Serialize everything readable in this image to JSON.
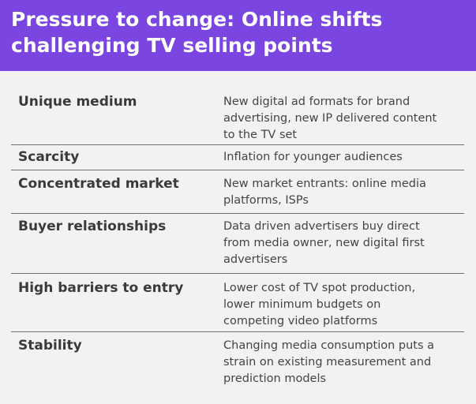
{
  "header": {
    "title_lines": [
      "Pressure to change: Online shifts",
      "challenging TV selling points"
    ]
  },
  "rows": [
    {
      "factor": "Unique medium",
      "shift_lines": [
        "New digital ad formats for brand",
        "advertising, new IP delivered content",
        "to the TV set"
      ]
    },
    {
      "factor": "Scarcity",
      "shift_lines": [
        "Inflation for younger audiences"
      ]
    },
    {
      "factor": "Concentrated market",
      "shift_lines": [
        "New market entrants: online media",
        "platforms, ISPs"
      ]
    },
    {
      "factor": "Buyer relationships",
      "shift_lines": [
        "Data driven advertisers buy direct",
        "from media owner, new digital first",
        "advertisers"
      ]
    },
    {
      "factor": "High barriers to entry",
      "shift_lines": [
        "Lower cost of TV spot production,",
        "lower minimum budgets on",
        "competing video platforms"
      ]
    },
    {
      "factor": "Stability",
      "shift_lines": [
        "Changing media consumption puts a",
        "strain on existing measurement and",
        "prediction models"
      ]
    }
  ]
}
